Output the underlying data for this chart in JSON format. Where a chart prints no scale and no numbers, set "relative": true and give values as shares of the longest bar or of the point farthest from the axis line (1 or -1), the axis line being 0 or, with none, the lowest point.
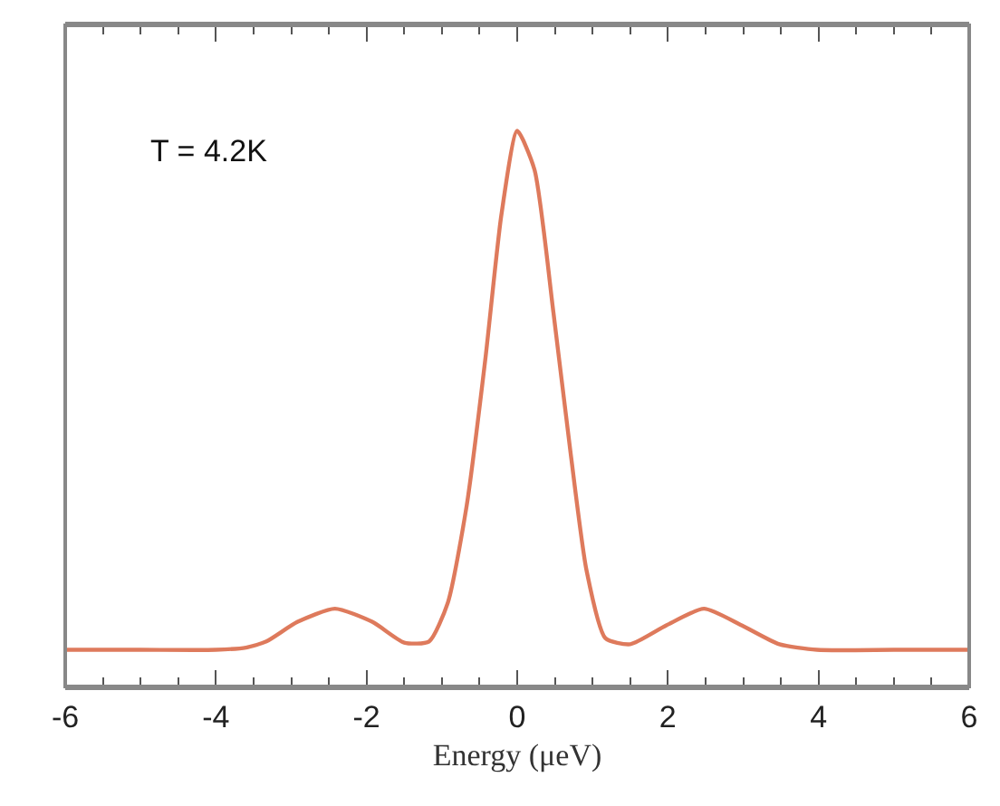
{
  "chart_data": {
    "type": "line",
    "relative": true,
    "xlabel": "Energy (μeV)",
    "annotations": [
      "T = 4.2K"
    ],
    "x": [
      -6,
      -5,
      -4,
      -3.6,
      -3.33,
      -2.92,
      -2.42,
      -1.92,
      -1.5,
      -1.17,
      -0.92,
      -0.67,
      -0.42,
      -0.21,
      0,
      0.23,
      0.48,
      0.71,
      0.92,
      1.17,
      1.5,
      1.98,
      2.48,
      2.98,
      3.48,
      3.98,
      5,
      6
    ],
    "series": [
      {
        "color": "#de7a5c",
        "values": [
          0.066,
          0.066,
          0.066,
          0.07,
          0.081,
          0.116,
          0.14,
          0.116,
          0.079,
          0.081,
          0.151,
          0.326,
          0.593,
          0.849,
          1,
          0.93,
          0.674,
          0.419,
          0.209,
          0.087,
          0.076,
          0.11,
          0.14,
          0.11,
          0.076,
          0.066,
          0.066,
          0.066
        ]
      }
    ],
    "xlim": [
      -6,
      6
    ],
    "xticks": [
      -6,
      -4,
      -2,
      0,
      2,
      4,
      6
    ],
    "legend": false,
    "marker": "none",
    "line_style": "solid"
  }
}
